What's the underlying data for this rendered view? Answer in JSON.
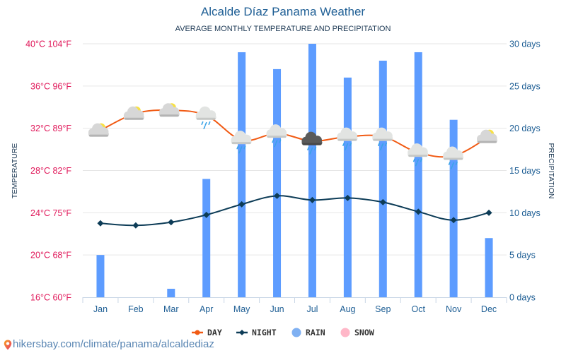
{
  "header": {
    "title": "Alcalde Díaz Panama Weather",
    "subtitle": "AVERAGE MONTHLY TEMPERATURE AND PRECIPITATION"
  },
  "footer": {
    "url": "hikersbay.com/climate/panama/alcaldediaz",
    "pin_icon": "map-pin-icon"
  },
  "colors": {
    "day": "#f15a13",
    "night": "#0d3c57",
    "rain": "#5d9cff",
    "snow": "#ffb7c8",
    "left_axis": "#e0185a",
    "right_axis": "#1f5f95"
  },
  "chart_data": {
    "type": "bar+line",
    "title": "Alcalde Díaz Panama Weather",
    "subtitle": "AVERAGE MONTHLY TEMPERATURE AND PRECIPITATION",
    "categories": [
      "Jan",
      "Feb",
      "Mar",
      "Apr",
      "May",
      "Jun",
      "Jul",
      "Aug",
      "Sep",
      "Oct",
      "Nov",
      "Dec"
    ],
    "ylabel_left": "TEMPERATURE",
    "ylabel_right": "PRECIPITATION",
    "ylim_left_c": [
      16,
      40
    ],
    "ylim_right_days": [
      0,
      30
    ],
    "left_ticks": [
      "40°C 104°F",
      "36°C 96°F",
      "32°C 89°F",
      "28°C 82°F",
      "24°C 75°F",
      "20°C 68°F",
      "16°C 60°F"
    ],
    "left_tick_values": [
      40,
      36,
      32,
      28,
      24,
      20,
      16
    ],
    "right_ticks": [
      "30 days",
      "25 days",
      "20 days",
      "15 days",
      "10 days",
      "5 days",
      "0 days"
    ],
    "right_tick_values": [
      30,
      25,
      20,
      15,
      10,
      5,
      0
    ],
    "grid": true,
    "legend_position": "bottom",
    "legend": [
      "DAY",
      "NIGHT",
      "RAIN",
      "SNOW"
    ],
    "series": [
      {
        "name": "DAY",
        "type": "line",
        "unit": "°C",
        "values": [
          31.8,
          33.4,
          33.7,
          33.2,
          30.9,
          31.5,
          30.8,
          31.2,
          31.2,
          29.7,
          29.4,
          31.2
        ]
      },
      {
        "name": "NIGHT",
        "type": "line",
        "unit": "°C",
        "values": [
          23.0,
          22.8,
          23.1,
          23.8,
          24.8,
          25.6,
          25.2,
          25.4,
          25.0,
          24.1,
          23.3,
          24.0
        ]
      },
      {
        "name": "RAIN",
        "type": "bar",
        "unit": "days",
        "values": [
          5,
          0,
          1,
          14,
          29,
          27,
          30,
          26,
          28,
          29,
          21,
          7
        ]
      },
      {
        "name": "SNOW",
        "type": "bar",
        "unit": "days",
        "values": [
          0,
          0,
          0,
          0,
          0,
          0,
          0,
          0,
          0,
          0,
          0,
          0
        ]
      }
    ],
    "weather_icons": [
      "partly-cloudy",
      "partly-cloudy",
      "partly-cloudy",
      "rain-cloud",
      "rain-cloud",
      "rain-cloud",
      "storm-cloud",
      "rain-cloud",
      "rain-cloud",
      "rain-cloud",
      "rain-cloud",
      "partly-cloudy"
    ]
  }
}
